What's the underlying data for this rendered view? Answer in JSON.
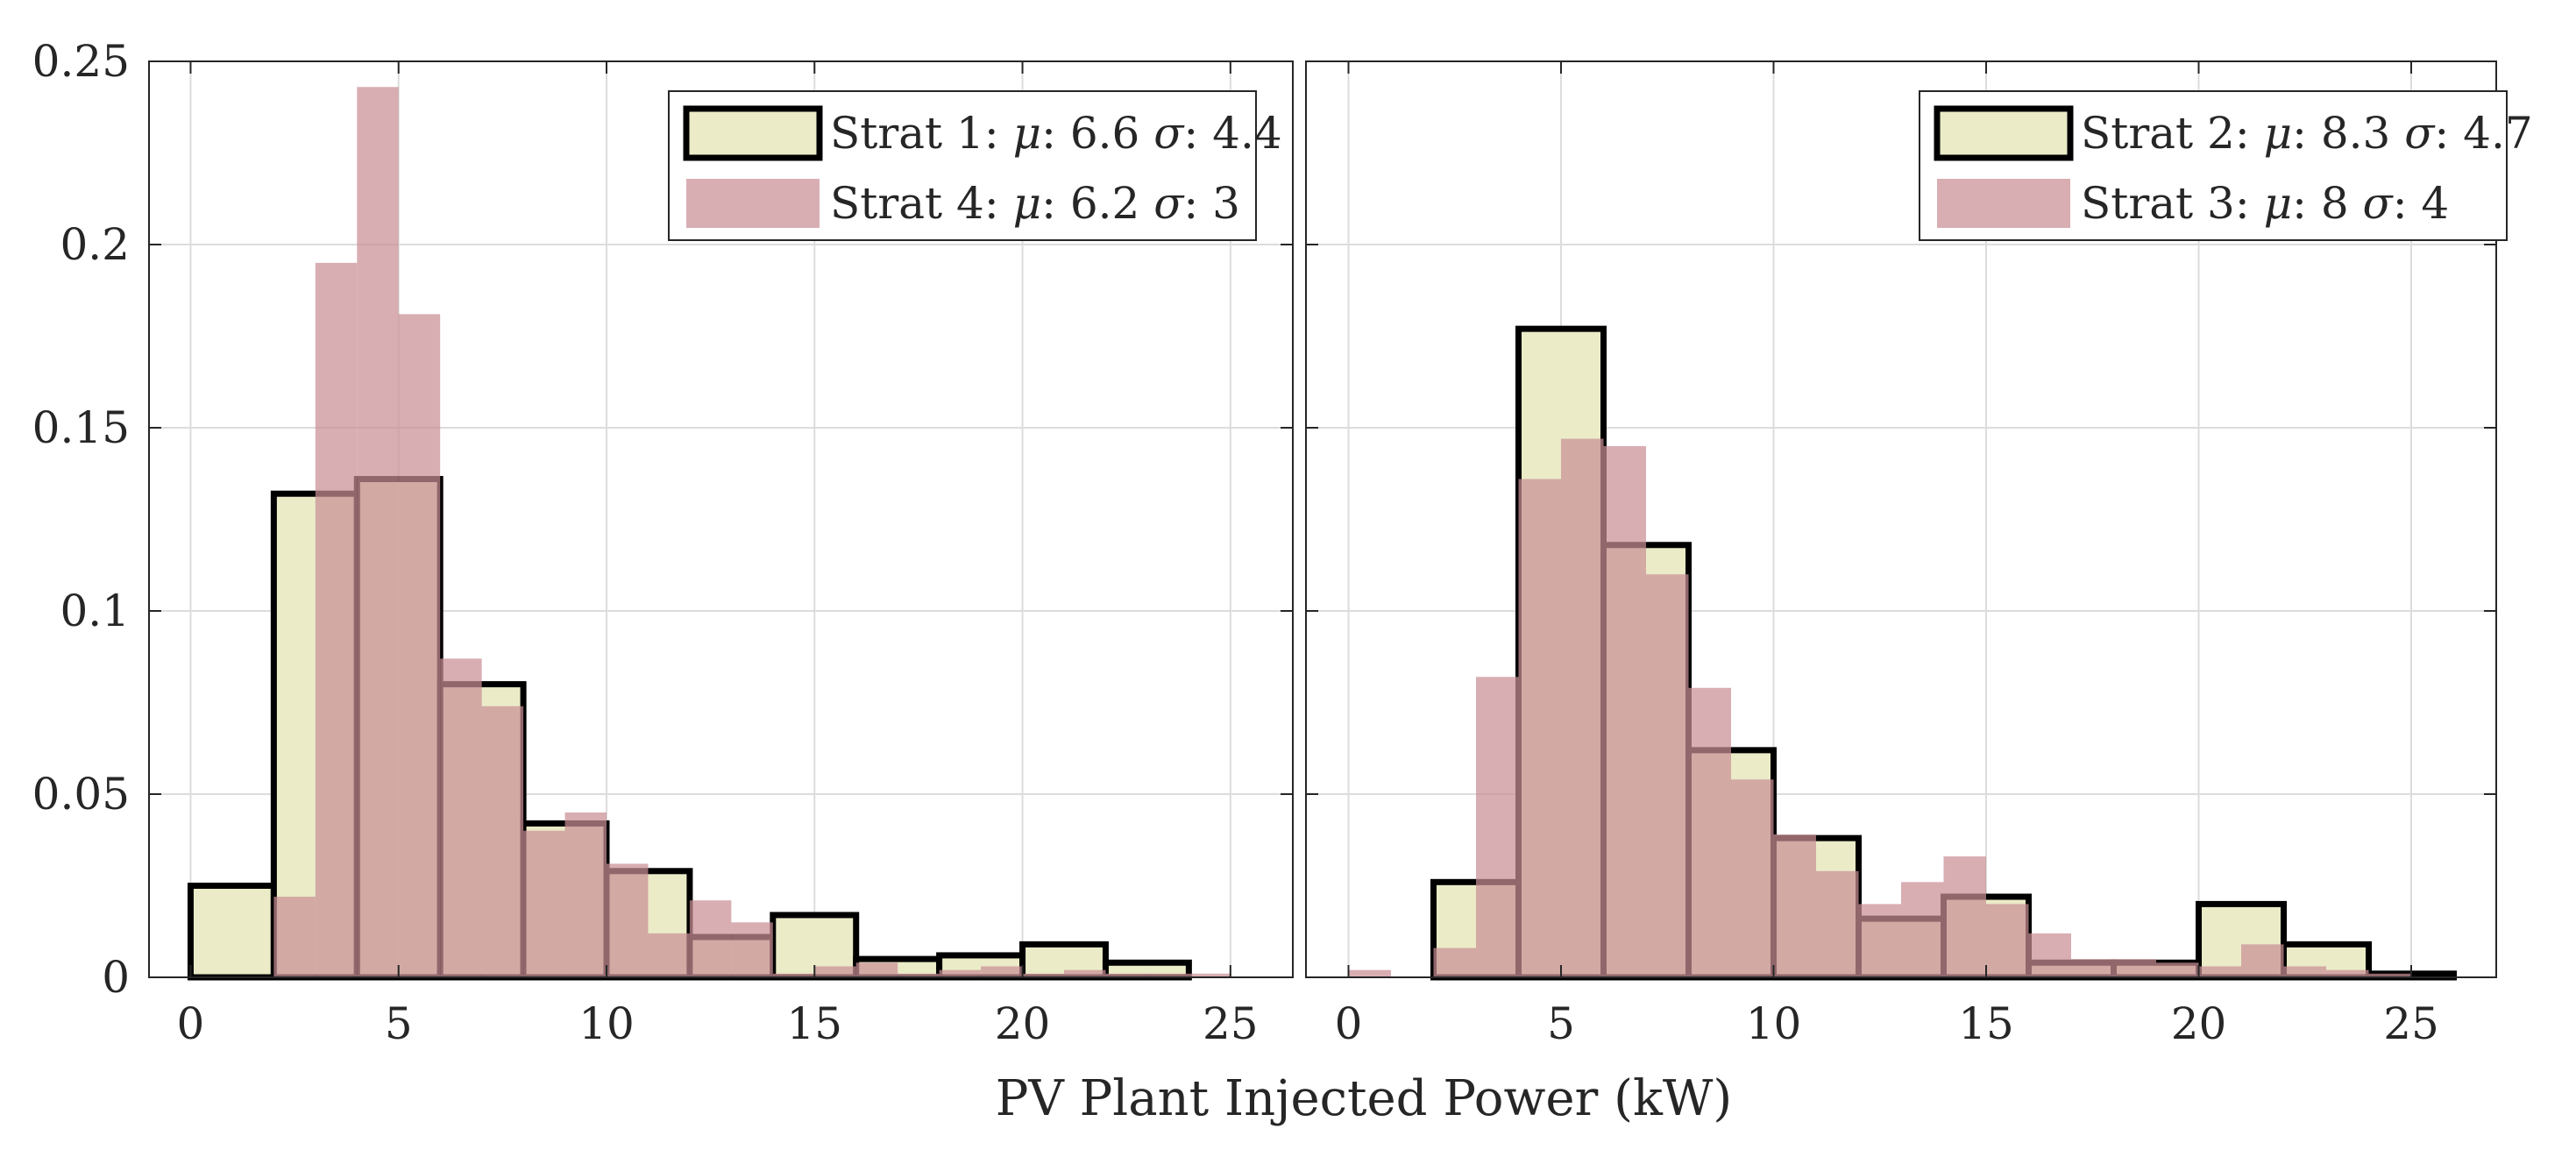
{
  "figure": {
    "xlabel": "PV Plant Injected Power (kW)",
    "colors": {
      "yellow_fill": "#ebebc8",
      "red_fill": "#c98f95",
      "edge": "#000000",
      "grid": "#dcdcdc"
    }
  },
  "chart_data": [
    {
      "type": "histogram",
      "name": "left",
      "xlim": [
        -1,
        26.5
      ],
      "ylim": [
        0,
        0.25
      ],
      "xticks": [
        0,
        5,
        10,
        15,
        20,
        25
      ],
      "yticks": [
        0,
        0.05,
        0.1,
        0.15,
        0.2,
        0.25
      ],
      "ytick_labels": [
        "0",
        "0.05",
        "0.1",
        "0.15",
        "0.2",
        "0.25"
      ],
      "xtick_labels": [
        "0",
        "5",
        "10",
        "15",
        "20",
        "25"
      ],
      "grid": true,
      "legend_position": "top-right",
      "series": [
        {
          "name": "Strat 1",
          "style": "outlined",
          "legend": {
            "prefix": "Strat 1: ",
            "mu_sym": "μ",
            "mu_val": ": 6.6 ",
            "sigma_sym": "σ",
            "sigma_val": ": 4.4"
          },
          "bin_edges": [
            0,
            2,
            4,
            6,
            8,
            10,
            12,
            14,
            16,
            18,
            20,
            22,
            24
          ],
          "values": [
            0.025,
            0.132,
            0.136,
            0.08,
            0.042,
            0.029,
            0.011,
            0.017,
            0.005,
            0.006,
            0.009,
            0.004
          ]
        },
        {
          "name": "Strat 4",
          "style": "filled",
          "legend": {
            "prefix": "Strat 4: ",
            "mu_sym": "μ",
            "mu_val": ": 6.2 ",
            "sigma_sym": "σ",
            "sigma_val": ": 3"
          },
          "bin_edges": [
            2,
            3,
            4,
            5,
            6,
            7,
            8,
            9,
            10,
            11,
            12,
            13,
            14,
            15,
            16,
            17,
            18,
            19,
            20,
            21,
            22,
            23,
            24,
            25
          ],
          "values": [
            0.022,
            0.195,
            0.243,
            0.181,
            0.087,
            0.074,
            0.04,
            0.045,
            0.031,
            0.012,
            0.021,
            0.015,
            0.001,
            0.003,
            0.004,
            0.001,
            0.002,
            0.003,
            0.001,
            0.002,
            0.001,
            0.001,
            0.001
          ]
        }
      ]
    },
    {
      "type": "histogram",
      "name": "right",
      "xlim": [
        -1,
        27
      ],
      "ylim": [
        0,
        0.25
      ],
      "xticks": [
        0,
        5,
        10,
        15,
        20,
        25
      ],
      "yticks": [
        0,
        0.05,
        0.1,
        0.15,
        0.2,
        0.25
      ],
      "xtick_labels": [
        "0",
        "5",
        "10",
        "15",
        "20",
        "25"
      ],
      "grid": true,
      "legend_position": "top-right",
      "series": [
        {
          "name": "Strat 2",
          "style": "outlined",
          "legend": {
            "prefix": "Strat 2: ",
            "mu_sym": "μ",
            "mu_val": ": 8.3 ",
            "sigma_sym": "σ",
            "sigma_val": ": 4.7"
          },
          "bin_edges": [
            2,
            4,
            6,
            8,
            10,
            12,
            14,
            16,
            18,
            20,
            22,
            24,
            26
          ],
          "values": [
            0.026,
            0.177,
            0.118,
            0.062,
            0.038,
            0.016,
            0.022,
            0.004,
            0.004,
            0.02,
            0.009,
            0.001
          ]
        },
        {
          "name": "Strat 3",
          "style": "filled",
          "legend": {
            "prefix": "Strat 3: ",
            "mu_sym": "μ",
            "mu_val": ": 8 ",
            "sigma_sym": "σ",
            "sigma_val": ": 4"
          },
          "bin_edges": [
            0,
            1,
            2,
            3,
            4,
            5,
            6,
            7,
            8,
            9,
            10,
            11,
            12,
            13,
            14,
            15,
            16,
            17,
            18,
            19,
            20,
            21,
            22,
            23,
            24,
            25
          ],
          "values": [
            0.002,
            0,
            0.008,
            0.082,
            0.136,
            0.147,
            0.145,
            0.11,
            0.079,
            0.054,
            0.039,
            0.029,
            0.02,
            0.026,
            0.033,
            0.02,
            0.012,
            0.005,
            0.005,
            0.004,
            0.003,
            0.009,
            0.003,
            0.002,
            0.001
          ]
        }
      ]
    }
  ]
}
